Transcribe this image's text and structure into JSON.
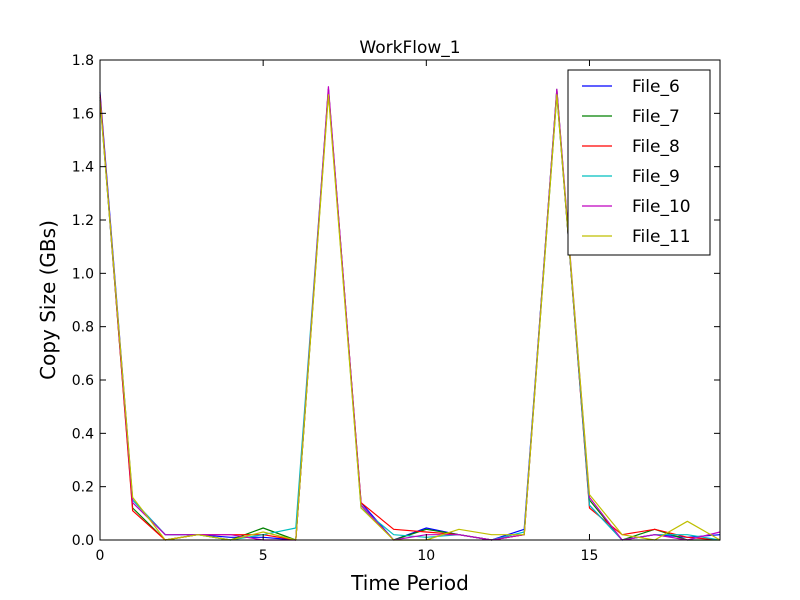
{
  "chart_data": {
    "type": "line",
    "title": "WorkFlow_1",
    "xlabel": "Time Period",
    "ylabel": "Copy Size (GBs)",
    "xlim": [
      0,
      19
    ],
    "ylim": [
      0,
      1.8
    ],
    "xticks": [
      0,
      5,
      10,
      15
    ],
    "yticks": [
      0.0,
      0.2,
      0.4,
      0.6,
      0.8,
      1.0,
      1.2,
      1.4,
      1.6,
      1.8
    ],
    "ytick_labels": [
      "0.0",
      "0.2",
      "0.4",
      "0.6",
      "0.8",
      "1.0",
      "1.2",
      "1.4",
      "1.6",
      "1.8"
    ],
    "xtick_labels": [
      "0",
      "5",
      "10",
      "15"
    ],
    "grid": false,
    "legend_position": "top-right",
    "x": [
      0,
      1,
      2,
      3,
      4,
      5,
      6,
      7,
      8,
      9,
      10,
      11,
      12,
      13,
      14,
      15,
      16,
      17,
      18,
      19
    ],
    "series": [
      {
        "name": "File_6",
        "color": "#0000ff",
        "values": [
          1.68,
          0.15,
          0.02,
          0.02,
          0.01,
          0.01,
          0.0,
          1.69,
          0.14,
          0.0,
          0.045,
          0.02,
          0.0,
          0.04,
          1.68,
          0.13,
          0.0,
          0.02,
          0.01,
          0.02
        ]
      },
      {
        "name": "File_7",
        "color": "#008000",
        "values": [
          1.66,
          0.12,
          0.0,
          0.02,
          0.0,
          0.045,
          0.0,
          1.68,
          0.13,
          0.0,
          0.04,
          0.02,
          0.0,
          0.02,
          1.67,
          0.15,
          0.0,
          0.04,
          0.0,
          0.0
        ]
      },
      {
        "name": "File_8",
        "color": "#ff0000",
        "values": [
          1.67,
          0.11,
          0.0,
          0.02,
          0.02,
          0.02,
          0.0,
          1.69,
          0.14,
          0.04,
          0.03,
          0.02,
          0.0,
          0.02,
          1.69,
          0.12,
          0.02,
          0.04,
          0.01,
          0.0
        ]
      },
      {
        "name": "File_9",
        "color": "#00bfbf",
        "values": [
          1.65,
          0.15,
          0.02,
          0.02,
          0.0,
          0.02,
          0.045,
          1.69,
          0.12,
          0.02,
          0.01,
          0.02,
          0.0,
          0.03,
          1.69,
          0.13,
          0.0,
          0.02,
          0.02,
          0.0
        ]
      },
      {
        "name": "File_10",
        "color": "#bf00bf",
        "values": [
          1.66,
          0.14,
          0.02,
          0.02,
          0.02,
          0.0,
          0.0,
          1.7,
          0.13,
          0.0,
          0.02,
          0.02,
          0.0,
          0.02,
          1.69,
          0.16,
          0.0,
          0.02,
          0.0,
          0.03
        ]
      },
      {
        "name": "File_11",
        "color": "#bfbf00",
        "values": [
          1.65,
          0.16,
          0.0,
          0.02,
          0.0,
          0.03,
          0.0,
          1.67,
          0.12,
          0.0,
          0.0,
          0.04,
          0.02,
          0.02,
          1.67,
          0.17,
          0.02,
          0.0,
          0.07,
          0.0
        ]
      }
    ]
  }
}
